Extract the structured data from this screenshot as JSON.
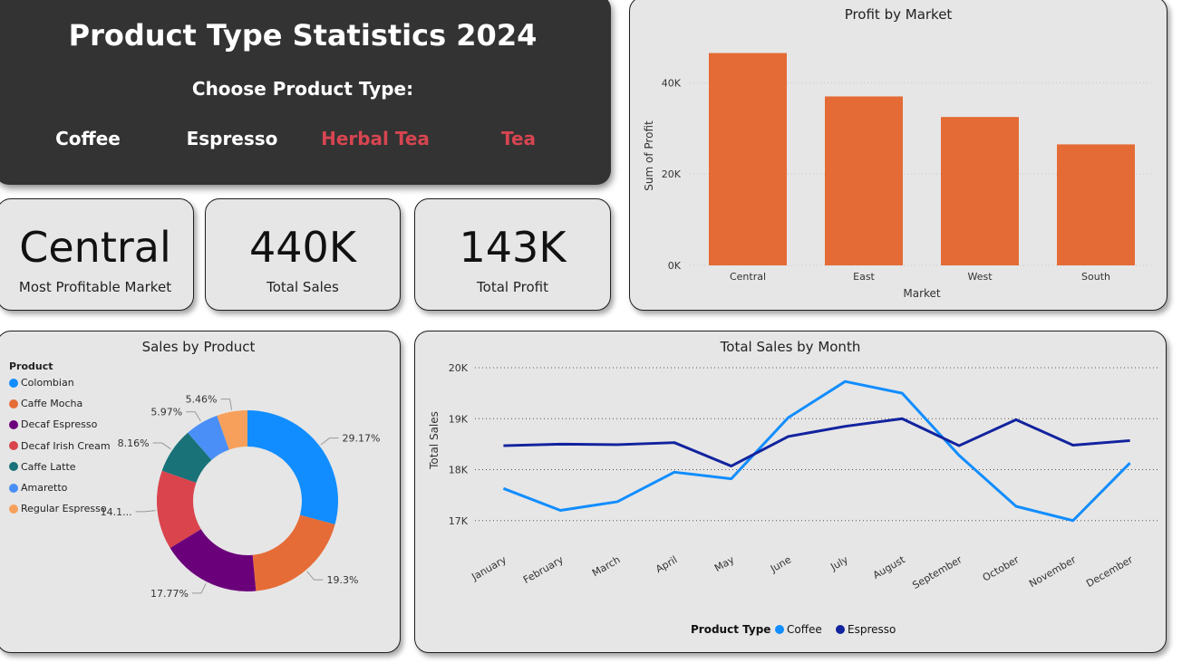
{
  "header": {
    "title": "Product Type Statistics 2024",
    "choose_label": "Choose Product Type:",
    "options": [
      {
        "label": "Coffee",
        "color": "#ffffff"
      },
      {
        "label": "Espresso",
        "color": "#ffffff"
      },
      {
        "label": "Herbal Tea",
        "color": "#d64550"
      },
      {
        "label": "Tea",
        "color": "#d64550"
      }
    ]
  },
  "kpis": [
    {
      "value": "Central",
      "label": "Most Profitable Market"
    },
    {
      "value": "440K",
      "label": "Total Sales"
    },
    {
      "value": "143K",
      "label": "Total Profit"
    }
  ],
  "chart_data": [
    {
      "type": "bar",
      "title": "Profit by Market",
      "xlabel": "Market",
      "ylabel": "Sum of Profit",
      "categories": [
        "Central",
        "East",
        "West",
        "South"
      ],
      "values": [
        46500,
        37000,
        32500,
        26500
      ],
      "ylim": [
        0,
        48000
      ],
      "yticks": [
        {
          "value": 0,
          "label": "0K"
        },
        {
          "value": 20000,
          "label": "20K"
        },
        {
          "value": 40000,
          "label": "40K"
        }
      ],
      "color": "#e46b35",
      "grid": true
    },
    {
      "type": "pie",
      "title": "Sales by Product",
      "legend_title": "Product",
      "slices": [
        {
          "name": "Colombian",
          "value": 29.17,
          "label": "29.17%",
          "color": "#118dff"
        },
        {
          "name": "Caffe Mocha",
          "value": 19.3,
          "label": "19.3%",
          "color": "#e66c37"
        },
        {
          "name": "Decaf Espresso",
          "value": 17.77,
          "label": "17.77%",
          "color": "#6b007b"
        },
        {
          "name": "Decaf Irish Cream",
          "value": 14.1,
          "label": "14.1...",
          "color": "#d9444d"
        },
        {
          "name": "Caffe Latte",
          "value": 8.16,
          "label": "8.16%",
          "color": "#197278"
        },
        {
          "name": "Amaretto",
          "value": 5.97,
          "label": "5.97%",
          "color": "#4a8ff7"
        },
        {
          "name": "Regular Espresso",
          "value": 5.46,
          "label": "5.46%",
          "color": "#f7a05b"
        }
      ]
    },
    {
      "type": "line",
      "title": "Total Sales by Month",
      "xlabel": "",
      "ylabel": "Total Sales",
      "x": [
        "January",
        "February",
        "March",
        "April",
        "May",
        "June",
        "July",
        "August",
        "September",
        "October",
        "November",
        "December"
      ],
      "ylim": [
        16800,
        20000
      ],
      "yticks": [
        {
          "value": 17000,
          "label": "17K"
        },
        {
          "value": 18000,
          "label": "18K"
        },
        {
          "value": 19000,
          "label": "19K"
        },
        {
          "value": 20000,
          "label": "20K"
        }
      ],
      "legend_title": "Product Type",
      "series": [
        {
          "name": "Coffee",
          "color": "#118dff",
          "values": [
            17630,
            17200,
            17370,
            17950,
            17820,
            19020,
            19730,
            19500,
            18280,
            17280,
            17000,
            18130
          ]
        },
        {
          "name": "Espresso",
          "color": "#12239e",
          "values": [
            18470,
            18500,
            18490,
            18530,
            18070,
            18650,
            18850,
            19000,
            18470,
            18980,
            18480,
            18570
          ]
        }
      ]
    }
  ]
}
